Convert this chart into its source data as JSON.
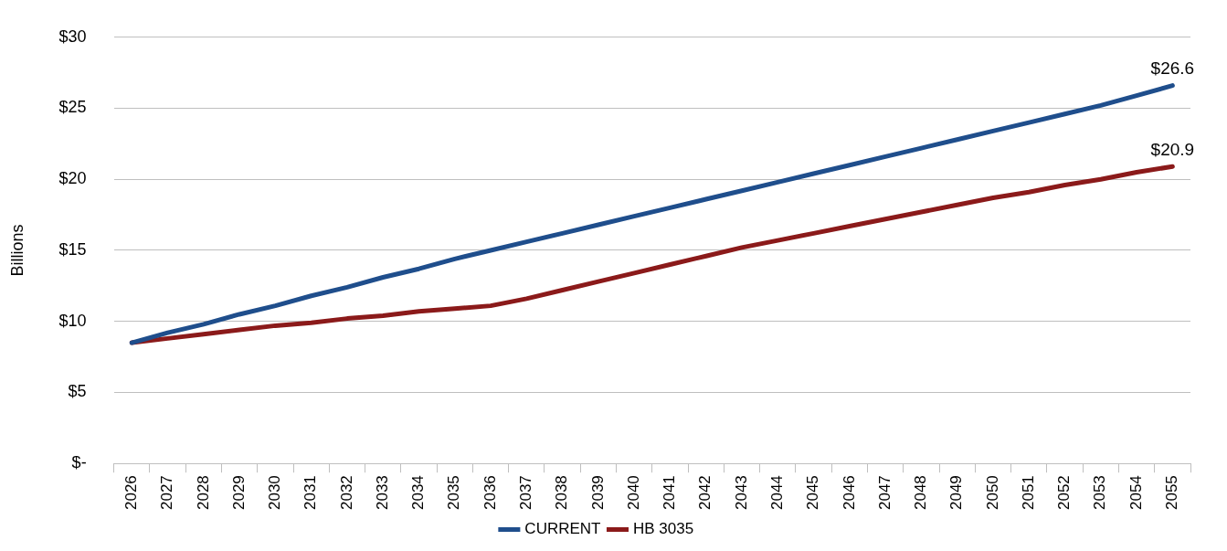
{
  "chart_data": {
    "type": "line",
    "ylabel": "Billions",
    "categories": [
      "2026",
      "2027",
      "2028",
      "2029",
      "2030",
      "2031",
      "2032",
      "2033",
      "2034",
      "2035",
      "2036",
      "2037",
      "2038",
      "2039",
      "2040",
      "2041",
      "2042",
      "2043",
      "2044",
      "2045",
      "2046",
      "2047",
      "2048",
      "2049",
      "2050",
      "2051",
      "2052",
      "2053",
      "2054",
      "2055"
    ],
    "series": [
      {
        "name": "CURRENT",
        "color": "#1f4e8c",
        "values": [
          8.5,
          9.2,
          9.8,
          10.5,
          11.1,
          11.8,
          12.4,
          13.1,
          13.7,
          14.4,
          15.0,
          15.6,
          16.2,
          16.8,
          17.4,
          18.0,
          18.6,
          19.2,
          19.8,
          20.4,
          21.0,
          21.6,
          22.2,
          22.8,
          23.4,
          24.0,
          24.6,
          25.2,
          25.9,
          26.6
        ],
        "value_labels": [
          null,
          null,
          null,
          null,
          null,
          null,
          null,
          null,
          null,
          null,
          null,
          null,
          null,
          null,
          null,
          null,
          null,
          null,
          null,
          null,
          null,
          null,
          null,
          null,
          null,
          null,
          null,
          null,
          null,
          "$26.6"
        ]
      },
      {
        "name": "HB 3035",
        "color": "#8b1a1a",
        "values": [
          8.5,
          8.8,
          9.1,
          9.4,
          9.7,
          9.9,
          10.2,
          10.4,
          10.7,
          10.9,
          11.1,
          11.6,
          12.2,
          12.8,
          13.4,
          14.0,
          14.6,
          15.2,
          15.7,
          16.2,
          16.7,
          17.2,
          17.7,
          18.2,
          18.7,
          19.1,
          19.6,
          20.0,
          20.5,
          20.9
        ],
        "value_labels": [
          null,
          null,
          null,
          null,
          null,
          null,
          null,
          null,
          null,
          null,
          null,
          null,
          null,
          null,
          null,
          null,
          null,
          null,
          null,
          null,
          null,
          null,
          null,
          null,
          null,
          null,
          null,
          null,
          null,
          "$20.9"
        ]
      }
    ],
    "ylim": [
      0,
      30
    ],
    "yticks": [
      {
        "value": 0,
        "label": "$-"
      },
      {
        "value": 5,
        "label": "$5"
      },
      {
        "value": 10,
        "label": "$10"
      },
      {
        "value": 15,
        "label": "$15"
      },
      {
        "value": 20,
        "label": "$20"
      },
      {
        "value": 25,
        "label": "$25"
      },
      {
        "value": 30,
        "label": "$30"
      }
    ],
    "grid": "y",
    "legend": "bottom",
    "marker": "none",
    "line_style": "solid"
  }
}
